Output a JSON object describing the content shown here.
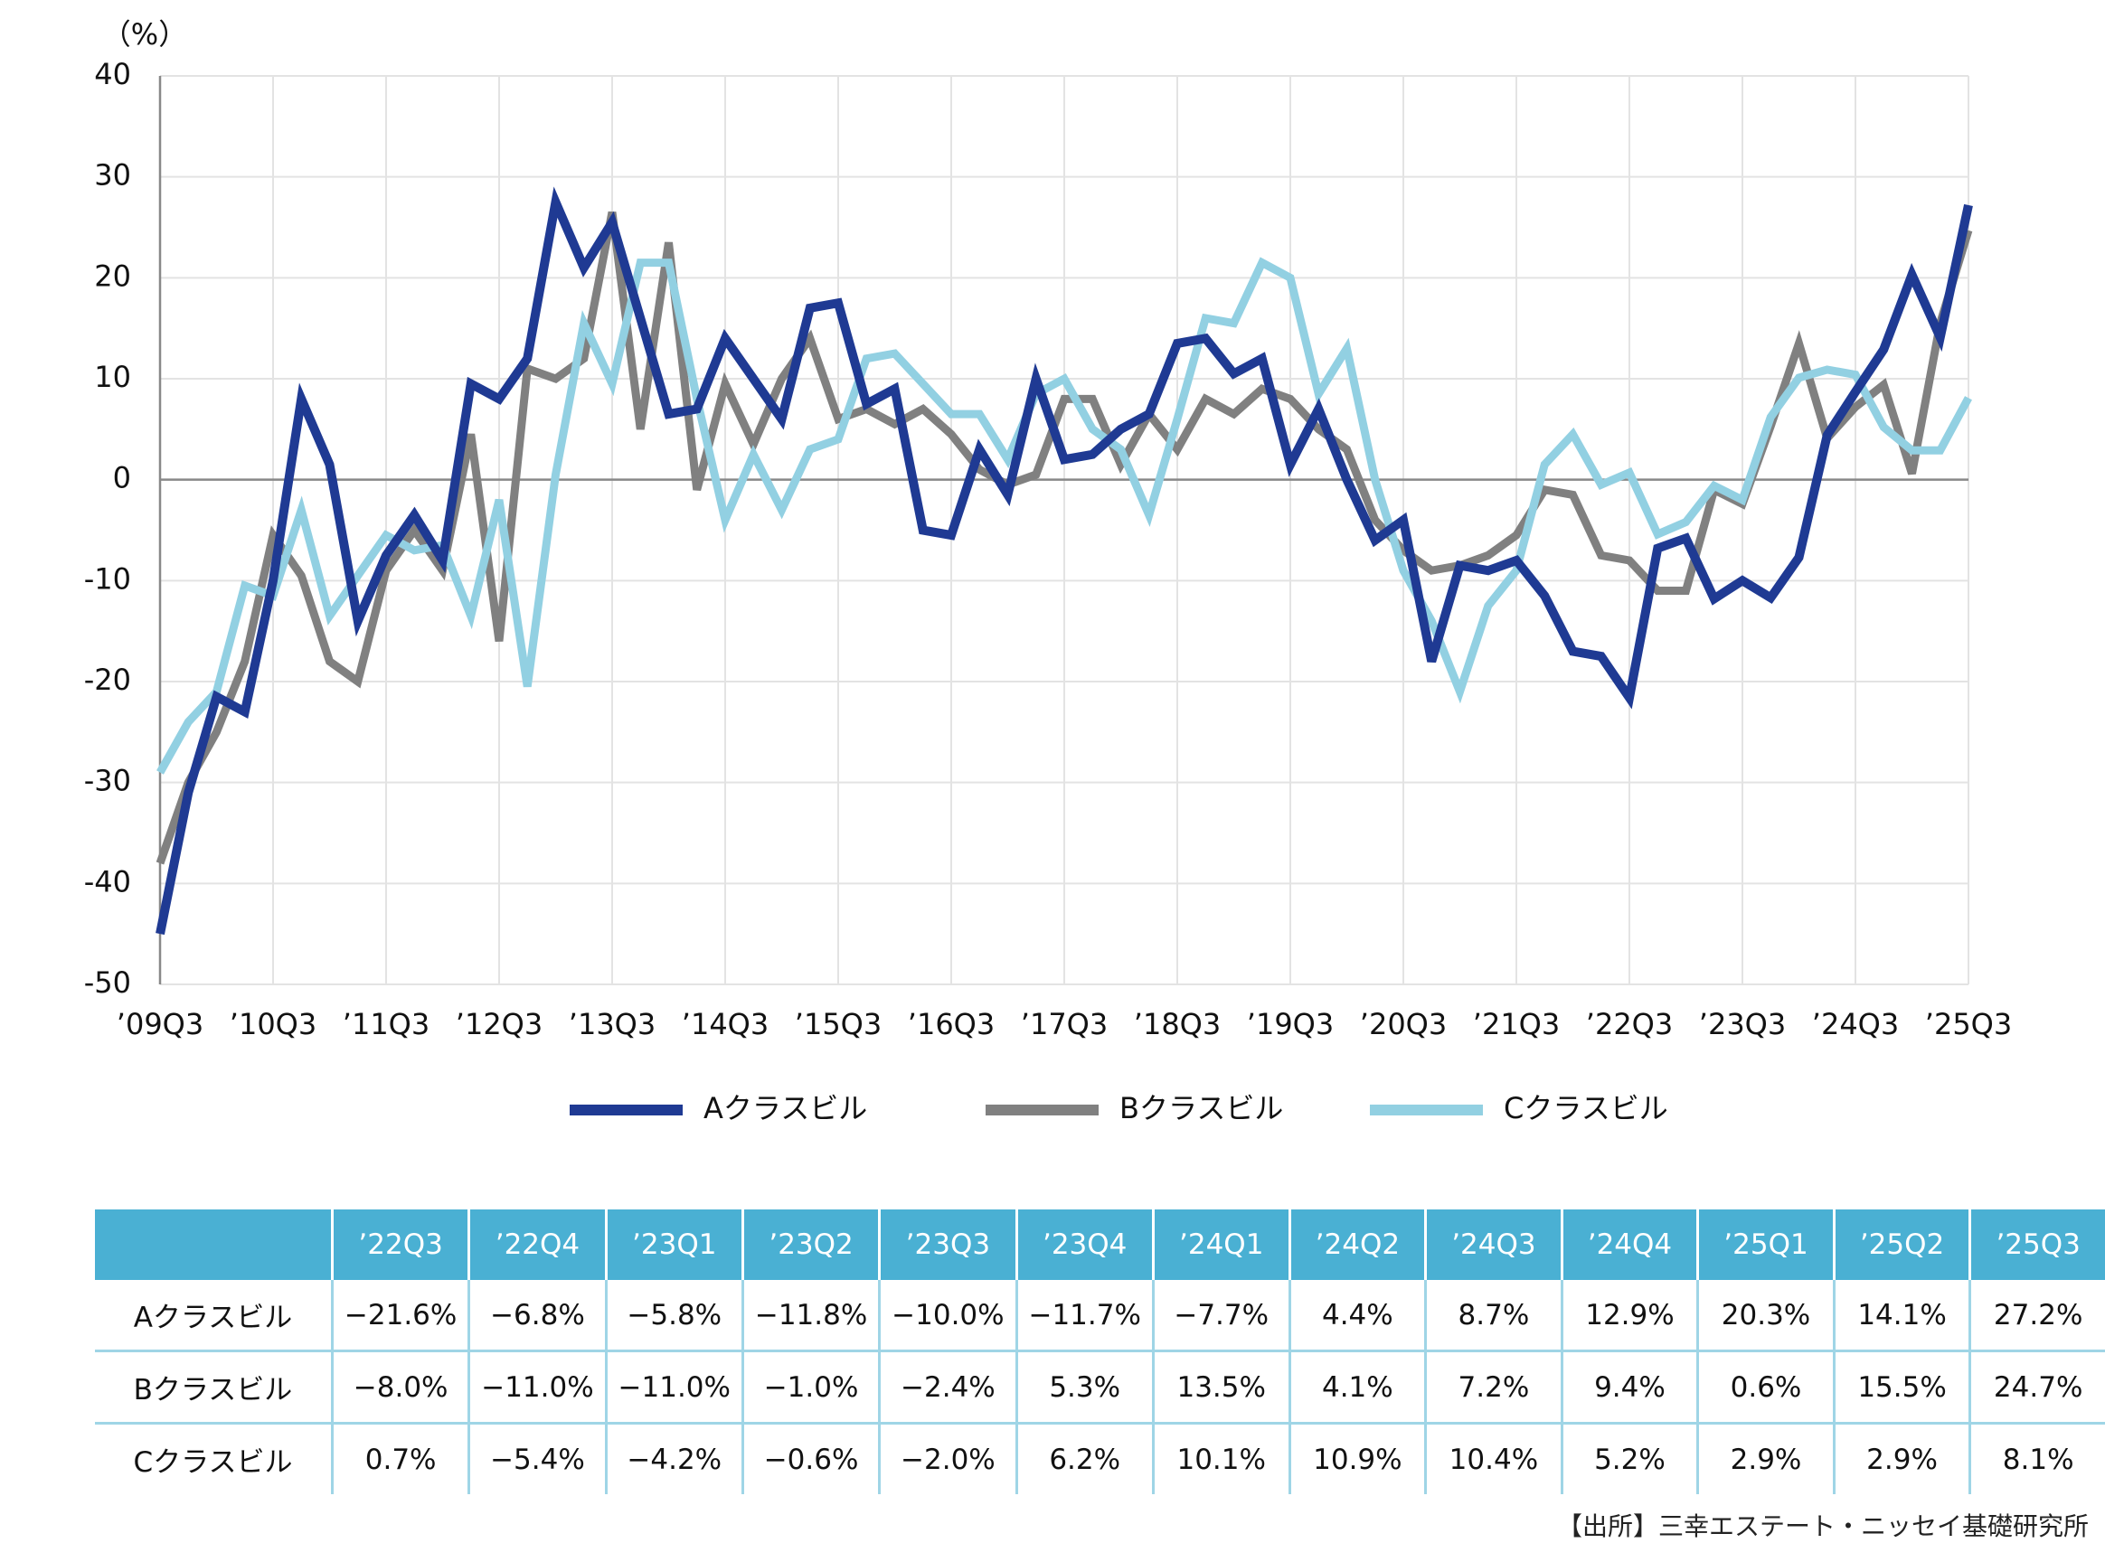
{
  "chart_data": {
    "type": "line",
    "y_label": "（%）",
    "categories": [
      "’09Q3",
      null,
      null,
      null,
      "’10Q3",
      null,
      null,
      null,
      "’11Q3",
      null,
      null,
      null,
      "’12Q3",
      null,
      null,
      null,
      "’13Q3",
      null,
      null,
      null,
      "’14Q3",
      null,
      null,
      null,
      "’15Q3",
      null,
      null,
      null,
      "’16Q3",
      null,
      null,
      null,
      "’17Q3",
      null,
      null,
      null,
      "’18Q3",
      null,
      null,
      null,
      "’19Q3",
      null,
      null,
      null,
      "’20Q3",
      null,
      null,
      null,
      "’21Q3",
      null,
      null,
      null,
      "’22Q3",
      null,
      null,
      null,
      "’23Q3",
      null,
      null,
      null,
      "’24Q3",
      null,
      null,
      null,
      "’25Q3"
    ],
    "series": [
      {
        "name": "Aクラスビル",
        "color": "#1f3a93",
        "values": [
          -45,
          -31,
          -21.5,
          -23,
          -10,
          8,
          1.5,
          -14,
          -7.5,
          -3.5,
          -8,
          9.5,
          8,
          12,
          27.5,
          21,
          25.5,
          16,
          6.5,
          7,
          14,
          10,
          6,
          17,
          17.5,
          7.5,
          9,
          -5,
          -5.5,
          3,
          -1.5,
          10,
          2,
          2.5,
          5,
          6.5,
          13.5,
          14,
          10.5,
          12,
          1.5,
          7,
          0,
          -6,
          -4,
          -18,
          -8.5,
          -9,
          -8,
          -11.5,
          -17,
          -17.5,
          -21.6,
          -6.8,
          -5.8,
          -11.8,
          -10.0,
          -11.7,
          -7.7,
          4.4,
          8.7,
          12.9,
          20.3,
          14.1,
          27.2
        ]
      },
      {
        "name": "Bクラスビル",
        "color": "#808080",
        "values": [
          -38,
          -30,
          -25,
          -18,
          -5.5,
          -9.5,
          -18,
          -20,
          -9,
          -5,
          -9,
          4.5,
          -16,
          11,
          10,
          12,
          26.5,
          5,
          23.5,
          -1,
          9.5,
          3.5,
          10,
          14,
          6,
          7,
          5.5,
          7,
          4.5,
          1,
          -0.5,
          0.5,
          8,
          8,
          1.5,
          6.5,
          3,
          8,
          6.5,
          9,
          8,
          5,
          3,
          -4,
          -7,
          -9,
          -8.5,
          -7.5,
          -5.5,
          -1,
          -1.5,
          -7.5,
          -8.0,
          -11.0,
          -11.0,
          -1.0,
          -2.4,
          5.3,
          13.5,
          4.1,
          7.2,
          9.4,
          0.6,
          15.5,
          24.7
        ]
      },
      {
        "name": "Cクラスビル",
        "color": "#92d0e2",
        "values": [
          -29,
          -24,
          -21,
          -10.5,
          -11.5,
          -3,
          -13.5,
          -9.5,
          -5.5,
          -7,
          -6.5,
          -13.5,
          -2,
          -20.5,
          0.5,
          15.5,
          9.5,
          21.5,
          21.5,
          8,
          -4,
          2.5,
          -3,
          3,
          4,
          12,
          12.5,
          9.5,
          6.5,
          6.5,
          2,
          8.5,
          10,
          5,
          3,
          -3.5,
          6,
          16,
          15.5,
          21.5,
          20,
          8.5,
          13,
          0,
          -9,
          -14,
          -21,
          -12.5,
          -9,
          1.5,
          4.5,
          -0.5,
          0.7,
          -5.4,
          -4.2,
          -0.6,
          -2.0,
          6.2,
          10.1,
          10.9,
          10.4,
          5.2,
          2.9,
          2.9,
          8.1
        ]
      }
    ],
    "ylim": [
      -50,
      40
    ],
    "yticks": [
      -50,
      -40,
      -30,
      -20,
      -10,
      0,
      10,
      20,
      30,
      40
    ],
    "grid": true,
    "legend": "bottom"
  },
  "table": {
    "columns": [
      "’22Q3",
      "’22Q4",
      "’23Q1",
      "’23Q2",
      "’23Q3",
      "’23Q4",
      "’24Q1",
      "’24Q2",
      "’24Q3",
      "’24Q4",
      "’25Q1",
      "’25Q2",
      "’25Q3"
    ],
    "rows": [
      {
        "label": "Aクラスビル",
        "cells": [
          "−21.6%",
          "−6.8%",
          "−5.8%",
          "−11.8%",
          "−10.0%",
          "−11.7%",
          "−7.7%",
          "4.4%",
          "8.7%",
          "12.9%",
          "20.3%",
          "14.1%",
          "27.2%"
        ]
      },
      {
        "label": "Bクラスビル",
        "cells": [
          "−8.0%",
          "−11.0%",
          "−11.0%",
          "−1.0%",
          "−2.4%",
          "5.3%",
          "13.5%",
          "4.1%",
          "7.2%",
          "9.4%",
          "0.6%",
          "15.5%",
          "24.7%"
        ]
      },
      {
        "label": "Cクラスビル",
        "cells": [
          "0.7%",
          "−5.4%",
          "−4.2%",
          "−0.6%",
          "−2.0%",
          "6.2%",
          "10.1%",
          "10.9%",
          "10.4%",
          "5.2%",
          "2.9%",
          "2.9%",
          "8.1%"
        ]
      }
    ]
  },
  "source": "【出所】三幸エステート・ニッセイ基礎研究所"
}
